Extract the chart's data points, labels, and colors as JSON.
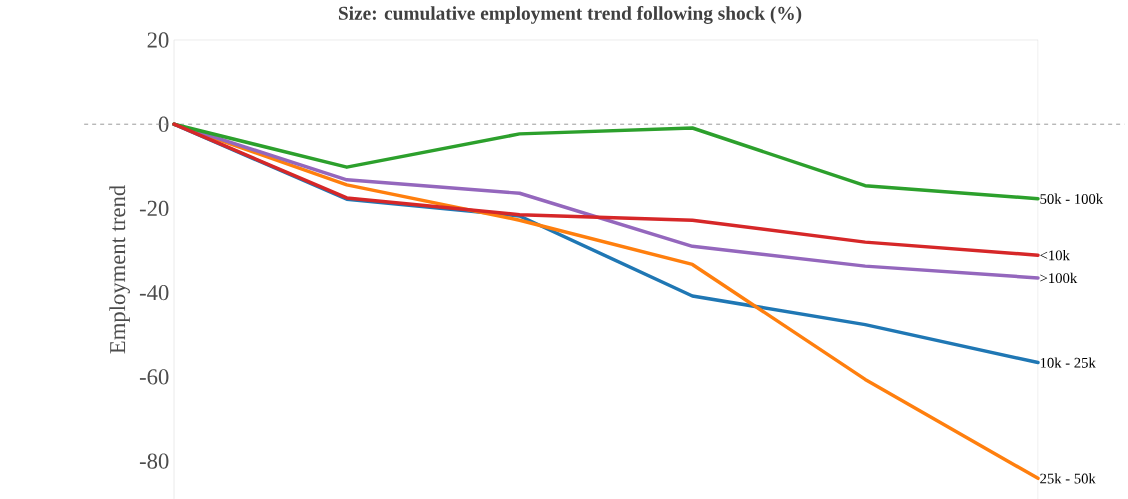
{
  "chart_data": {
    "type": "line",
    "title": "Size: cumulative employment trend following shock (%)",
    "ylabel": "Employment trend",
    "categories": [
      null,
      null,
      null,
      null,
      null,
      null
    ],
    "series": [
      {
        "name": "10k - 25k",
        "color": "#1f77b4",
        "values": [
          0,
          -17.8,
          -21.8,
          -40.8,
          -47.6,
          -56.6
        ]
      },
      {
        "name": "25k - 50k",
        "color": "#ff7f0e",
        "values": [
          0,
          -14.4,
          -22.8,
          -33.3,
          -60.6,
          -84.1
        ]
      },
      {
        "name": ">100k",
        "color": "#9467bd",
        "values": [
          0,
          -13.2,
          -16.4,
          -29.0,
          -33.7,
          -36.5
        ]
      },
      {
        "name": "50k - 100k",
        "color": "#2ca02c",
        "values": [
          0,
          -10.2,
          -2.3,
          -0.9,
          -14.6,
          -17.7
        ]
      },
      {
        "name": "<10k",
        "color": "#d62728",
        "values": [
          0,
          -17.5,
          -21.5,
          -22.8,
          -28.0,
          -31.1
        ]
      }
    ],
    "ylim": [
      -89,
      20
    ],
    "yticks": [
      20,
      0,
      -20,
      -40,
      -60,
      -80
    ],
    "ref_lines": [
      {
        "axis": "y",
        "value": 0,
        "color": "#808080",
        "line_style": "dashed"
      }
    ],
    "tick_labels": "y",
    "grid": false,
    "legend": false,
    "marker": "none",
    "line_style": "solid"
  }
}
